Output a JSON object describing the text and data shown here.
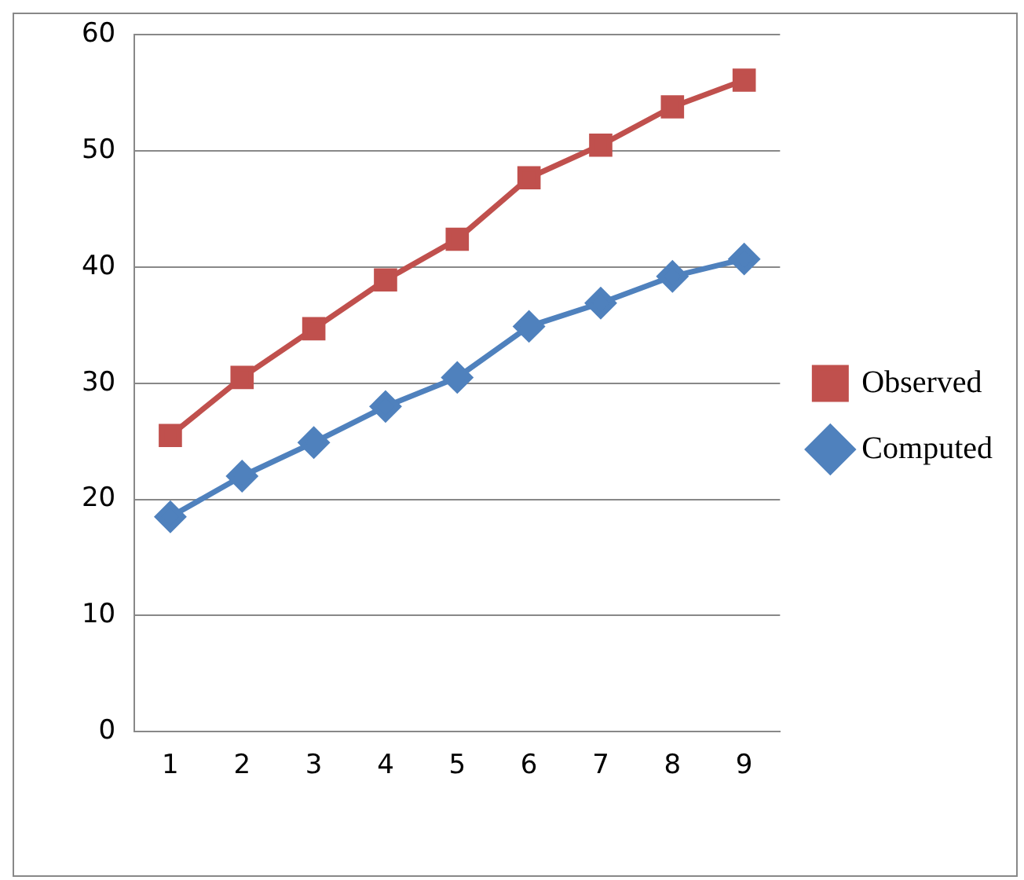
{
  "chart_data": {
    "type": "line",
    "categories": [
      "1",
      "2",
      "3",
      "4",
      "5",
      "6",
      "7",
      "8",
      "9"
    ],
    "series": [
      {
        "name": "Observed",
        "color": "#c0504d",
        "marker": "square",
        "values": [
          25.5,
          30.5,
          34.7,
          38.9,
          42.4,
          47.7,
          50.5,
          53.8,
          56.1
        ]
      },
      {
        "name": "Computed",
        "color": "#4f81bd",
        "marker": "diamond",
        "values": [
          18.5,
          22.0,
          24.9,
          28.0,
          30.5,
          34.9,
          36.9,
          39.2,
          40.7
        ]
      }
    ],
    "ylim": [
      0,
      60
    ],
    "yticks": [
      0,
      10,
      20,
      30,
      40,
      50,
      60
    ],
    "grid": "y",
    "legend": "right",
    "line_style": "solid"
  }
}
